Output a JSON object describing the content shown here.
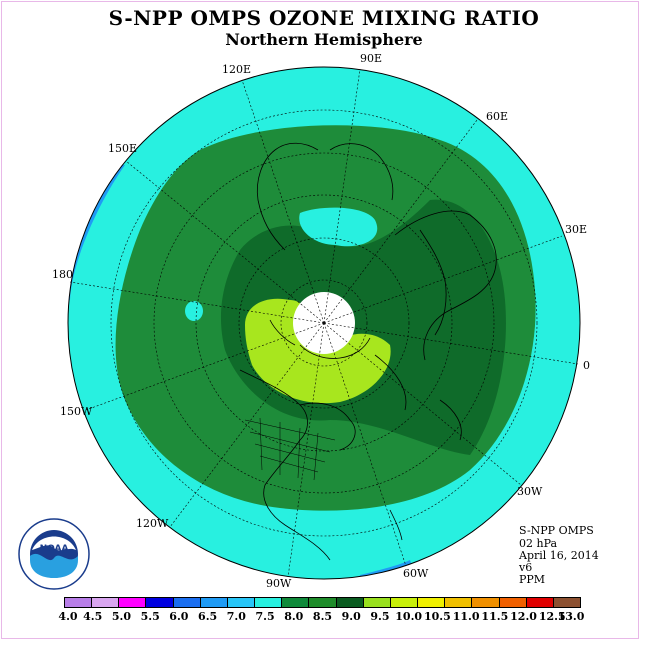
{
  "title": "S-NPP OMPS OZONE MIXING RATIO",
  "subtitle": "Northern Hemisphere",
  "longitudes": [
    "90E",
    "60E",
    "30E",
    "0",
    "30W",
    "60W",
    "90W",
    "120W",
    "150W",
    "180",
    "150E",
    "120E"
  ],
  "info": {
    "instrument": "S-NPP OMPS",
    "pressure": "02 hPa",
    "date": "April 16, 2014",
    "version": "v6",
    "units": "PPM"
  },
  "colorbar": {
    "ticks": [
      "4.0",
      "4.5",
      "5.0",
      "5.5",
      "6.0",
      "6.5",
      "7.0",
      "7.5",
      "8.0",
      "8.5",
      "9.0",
      "9.5",
      "10.0",
      "10.5",
      "11.0",
      "11.5",
      "12.0",
      "12.5",
      "13.0"
    ],
    "colors": [
      "#b87ee8",
      "#d9a6f0",
      "#ff00ff",
      "#0000e0",
      "#1a6ef0",
      "#1f9bf5",
      "#28c6f8",
      "#28f0e0",
      "#0f8a3a",
      "#1e8c2a",
      "#0a5c20",
      "#99e01e",
      "#c8f00a",
      "#f0f000",
      "#f0c000",
      "#f09000",
      "#f06000",
      "#e00000",
      "#8c5030"
    ]
  },
  "logo_text": {
    "name": "NOAA",
    "ring": "NATIONAL OCEANIC AND ATMOSPHERIC ADMINISTRATION",
    "ring_bottom": "U.S. DEPARTMENT OF COMMERCE"
  },
  "map_colors": {
    "outer_band": "#28f0e0",
    "blue_band": "#1f9bf5",
    "green_8": "#1e8c3a",
    "green_85": "#0f6b2a",
    "lime": "#a8e61e",
    "white_pole": "#ffffff"
  }
}
